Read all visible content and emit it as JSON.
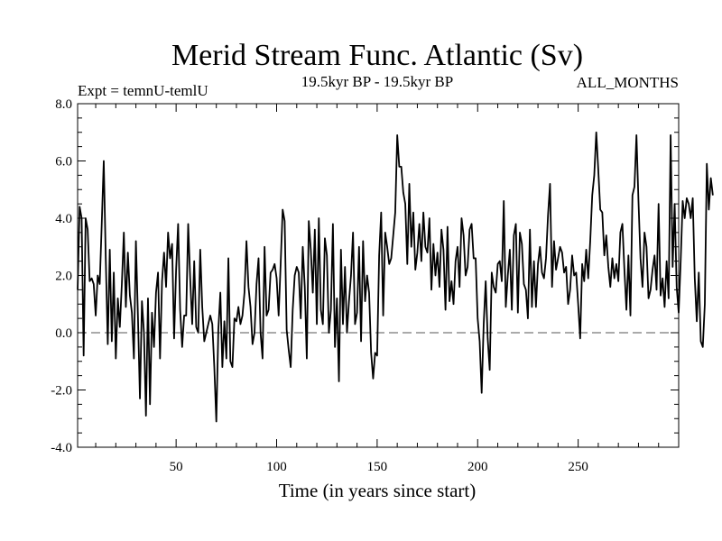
{
  "chart_data": {
    "type": "line",
    "title": "Merid Stream Func. Atlantic (Sv)",
    "subtitle_left": "Expt = temnU-temlU",
    "subtitle_center": "19.5kyr BP - 19.5kyr BP",
    "subtitle_right": "ALL_MONTHS",
    "xlabel": "Time (in years since start)",
    "ylabel": "",
    "xlim": [
      1,
      300
    ],
    "ylim": [
      -4,
      8
    ],
    "xticks": [
      50,
      100,
      150,
      200,
      250
    ],
    "xtick_labels": [
      "50",
      "100",
      "150",
      "200",
      "250"
    ],
    "yticks": [
      -4,
      -2,
      0,
      2,
      4,
      6,
      8
    ],
    "ytick_labels": [
      "-4.0",
      "-2.0",
      "0.0",
      "2.0",
      "4.0",
      "6.0",
      "8.0"
    ],
    "reference_line": {
      "y": 0,
      "style": "dashed"
    },
    "series": [
      {
        "name": "Merid Stream Func. Atlantic",
        "x_start": 1,
        "x_step": 1,
        "values": [
          1.5,
          4.4,
          4.0,
          -0.8,
          4.0,
          3.6,
          1.8,
          1.9,
          1.7,
          0.6,
          2.0,
          1.7,
          3.8,
          6.0,
          2.6,
          -0.4,
          2.9,
          -0.3,
          2.1,
          -0.9,
          1.2,
          0.2,
          1.7,
          3.5,
          0.9,
          2.8,
          1.3,
          0.7,
          -0.9,
          3.2,
          0.6,
          -2.3,
          1.1,
          0.0,
          -2.9,
          1.2,
          -2.5,
          0.7,
          -0.5,
          1.4,
          2.1,
          -0.9,
          1.8,
          2.8,
          1.6,
          3.5,
          2.6,
          3.1,
          -0.2,
          2.2,
          3.8,
          0.8,
          -0.5,
          0.6,
          0.6,
          3.8,
          1.9,
          0.3,
          2.5,
          0.2,
          0.0,
          2.9,
          0.9,
          -0.3,
          0.0,
          0.3,
          0.6,
          0.3,
          -1.2,
          -3.1,
          0.1,
          1.4,
          -1.2,
          0.4,
          -0.9,
          2.6,
          -1.0,
          -1.2,
          0.5,
          0.4,
          0.9,
          0.3,
          0.6,
          1.4,
          3.2,
          1.6,
          0.9,
          -0.4,
          0.0,
          1.7,
          2.6,
          0.0,
          -0.9,
          3.0,
          0.6,
          0.8,
          2.1,
          2.2,
          2.4,
          1.9,
          0.6,
          2.4,
          4.3,
          3.9,
          0.1,
          -0.6,
          -1.2,
          0.8,
          2.0,
          2.3,
          2.1,
          0.5,
          3.0,
          1.6,
          -0.9,
          3.9,
          2.9,
          1.4,
          3.6,
          0.3,
          4.0,
          0.8,
          0.3,
          3.3,
          2.7,
          0.0,
          0.8,
          3.8,
          -0.5,
          1.2,
          -1.7,
          2.9,
          0.3,
          2.3,
          0.0,
          1.1,
          2.0,
          3.5,
          0.3,
          0.7,
          3.0,
          -0.3,
          3.2,
          1.1,
          2.0,
          1.4,
          -0.7,
          -1.6,
          -0.7,
          -0.8,
          2.7,
          4.2,
          0.6,
          3.5,
          3.0,
          2.4,
          2.6,
          3.4,
          4.2,
          6.9,
          5.8,
          5.8,
          4.9,
          4.5,
          2.4,
          5.2,
          3.0,
          4.2,
          2.2,
          2.8,
          3.8,
          2.5,
          4.2,
          3.0,
          2.8,
          4.0,
          1.5,
          3.1,
          2.0,
          2.8,
          1.6,
          3.6,
          2.9,
          0.8,
          3.7,
          1.1,
          1.8,
          1.0,
          2.5,
          3.0,
          1.6,
          4.0,
          3.4,
          2.0,
          2.3,
          3.6,
          3.8,
          2.6,
          2.6,
          0.5,
          -0.3,
          -2.1,
          0.3,
          1.8,
          -0.2,
          -1.3,
          2.1,
          1.6,
          1.4,
          2.4,
          2.5,
          1.8,
          4.6,
          0.9,
          2.0,
          2.9,
          0.8,
          3.4,
          3.8,
          0.7,
          3.5,
          3.1,
          1.7,
          1.5,
          0.5,
          3.6,
          0.9,
          2.5,
          0.9,
          2.4,
          3.0,
          2.1,
          1.9,
          2.6,
          4.1,
          5.2,
          1.6,
          3.2,
          2.2,
          2.6,
          3.0,
          2.8,
          2.1,
          2.3,
          1.0,
          1.5,
          2.7,
          2.0,
          2.1,
          1.0,
          -0.2,
          2.4,
          1.8,
          2.9,
          1.9,
          3.2,
          4.8,
          5.5,
          7.0,
          5.7,
          4.3,
          4.2,
          2.7,
          3.4,
          2.3,
          1.6,
          2.6,
          1.9,
          2.4,
          1.8,
          3.5,
          3.8,
          2.2,
          0.8,
          2.7,
          0.6,
          4.8,
          5.1,
          6.9,
          4.6,
          2.6,
          1.6,
          3.5,
          3.0,
          1.2,
          1.5,
          2.2,
          2.7,
          1.5,
          4.5,
          1.3,
          1.9,
          0.9,
          2.5,
          1.2,
          6.9,
          2.3,
          4.5,
          1.6,
          0.7,
          2.5,
          4.6,
          4.0,
          4.7,
          4.5,
          4.0,
          4.7,
          1.9,
          0.4,
          2.1,
          -0.3,
          -0.5,
          1.0,
          5.9,
          4.3,
          5.4,
          4.8
        ]
      }
    ]
  }
}
